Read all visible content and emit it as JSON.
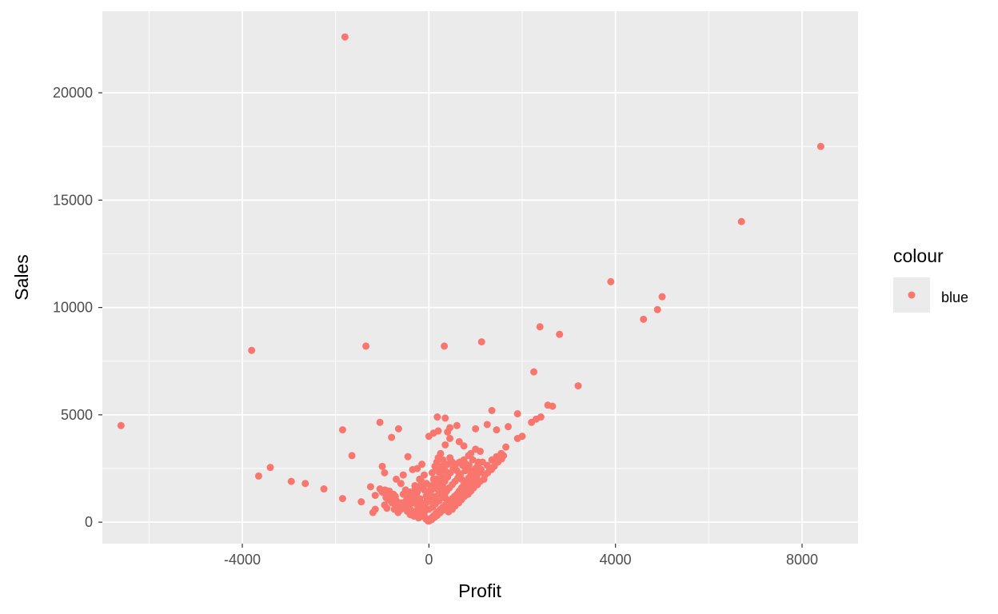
{
  "chart_data": {
    "type": "scatter",
    "title": "",
    "xlabel": "Profit",
    "ylabel": "Sales",
    "xlim": [
      -7000,
      9200
    ],
    "ylim": [
      -1000,
      23800
    ],
    "x_ticks": [
      -4000,
      0,
      4000,
      8000
    ],
    "x_tick_labels": [
      "-4000",
      "0",
      "4000",
      "8000"
    ],
    "y_ticks": [
      0,
      5000,
      10000,
      15000,
      20000
    ],
    "y_tick_labels": [
      "0",
      "5000",
      "10000",
      "15000",
      "20000"
    ],
    "x_minor": [
      -6000,
      -2000,
      2000,
      6000
    ],
    "y_minor": [
      2500,
      7500,
      12500,
      17500
    ],
    "grid": true,
    "legend": {
      "title": "colour",
      "position": "right",
      "entries": [
        {
          "label": "blue",
          "color": "#F8766D"
        }
      ]
    },
    "colors": {
      "point": "#F8766D",
      "panel": "#EBEBEB",
      "grid": "#FFFFFF"
    },
    "series": [
      {
        "name": "blue",
        "points": [
          [
            -6600,
            4500
          ],
          [
            -3800,
            8000
          ],
          [
            -1800,
            22600
          ],
          [
            8400,
            17500
          ],
          [
            6700,
            14000
          ],
          [
            3900,
            11200
          ],
          [
            5000,
            10500
          ],
          [
            4900,
            9900
          ],
          [
            4600,
            9450
          ],
          [
            -1350,
            8200
          ],
          [
            330,
            8200
          ],
          [
            1130,
            8400
          ],
          [
            2380,
            9100
          ],
          [
            2800,
            8750
          ],
          [
            2250,
            7000
          ],
          [
            3200,
            6350
          ],
          [
            2550,
            5450
          ],
          [
            2650,
            5400
          ],
          [
            2400,
            4900
          ],
          [
            2300,
            4800
          ],
          [
            2200,
            4650
          ],
          [
            1900,
            5050
          ],
          [
            1350,
            5200
          ],
          [
            1250,
            4550
          ],
          [
            1000,
            4350
          ],
          [
            1450,
            4300
          ],
          [
            1700,
            4450
          ],
          [
            1900,
            3900
          ],
          [
            1650,
            3500
          ],
          [
            2000,
            4000
          ],
          [
            -1850,
            4300
          ],
          [
            -1050,
            4650
          ],
          [
            -650,
            4350
          ],
          [
            -800,
            3950
          ],
          [
            -1650,
            3100
          ],
          [
            -450,
            3050
          ],
          [
            -3650,
            2150
          ],
          [
            -3400,
            2550
          ],
          [
            -2950,
            1900
          ],
          [
            -2650,
            1800
          ],
          [
            -2250,
            1550
          ],
          [
            -1850,
            1100
          ],
          [
            -1450,
            950
          ],
          [
            -1250,
            1650
          ],
          [
            -1050,
            1550
          ],
          [
            -1000,
            2600
          ],
          [
            -950,
            2300
          ],
          [
            -850,
            1450
          ],
          [
            -1150,
            1250
          ],
          [
            -1150,
            600
          ],
          [
            -1200,
            450
          ],
          [
            -950,
            800
          ],
          [
            -900,
            650
          ],
          [
            -800,
            1100
          ],
          [
            -700,
            2000
          ],
          [
            -600,
            1800
          ],
          [
            -550,
            2200
          ],
          [
            -350,
            2450
          ],
          [
            -250,
            2500
          ],
          [
            -150,
            2700
          ],
          [
            0,
            4000
          ],
          [
            100,
            4150
          ],
          [
            200,
            4250
          ],
          [
            400,
            4200
          ],
          [
            180,
            4900
          ],
          [
            350,
            4850
          ],
          [
            450,
            4400
          ],
          [
            600,
            4500
          ],
          [
            450,
            3900
          ],
          [
            350,
            3600
          ],
          [
            650,
            3750
          ],
          [
            750,
            3550
          ],
          [
            850,
            3100
          ],
          [
            900,
            3200
          ],
          [
            1000,
            3400
          ],
          [
            1100,
            3300
          ],
          [
            1150,
            2800
          ],
          [
            1250,
            2650
          ],
          [
            1350,
            2900
          ],
          [
            1450,
            3050
          ],
          [
            1550,
            3200
          ],
          [
            1300,
            2500
          ],
          [
            -700,
            1000
          ],
          [
            -600,
            900
          ],
          [
            -500,
            700
          ],
          [
            -400,
            600
          ],
          [
            -300,
            500
          ],
          [
            -200,
            400
          ],
          [
            -100,
            300
          ],
          [
            -50,
            150
          ],
          [
            -500,
            1500
          ],
          [
            -400,
            1400
          ],
          [
            -300,
            1200
          ],
          [
            -200,
            1100
          ],
          [
            -100,
            900
          ],
          [
            -350,
            900
          ],
          [
            -250,
            800
          ],
          [
            -150,
            650
          ],
          [
            -450,
            1100
          ],
          [
            -550,
            1300
          ],
          [
            0,
            100
          ],
          [
            50,
            200
          ],
          [
            100,
            300
          ],
          [
            150,
            400
          ],
          [
            200,
            500
          ],
          [
            250,
            600
          ],
          [
            300,
            700
          ],
          [
            350,
            800
          ],
          [
            400,
            900
          ],
          [
            450,
            1000
          ],
          [
            500,
            1100
          ],
          [
            550,
            1200
          ],
          [
            600,
            1300
          ],
          [
            650,
            1450
          ],
          [
            700,
            1600
          ],
          [
            750,
            1750
          ],
          [
            800,
            1900
          ],
          [
            850,
            2050
          ],
          [
            900,
            2200
          ],
          [
            950,
            2350
          ],
          [
            1000,
            2500
          ],
          [
            1050,
            2650
          ],
          [
            100,
            900
          ],
          [
            150,
            1200
          ],
          [
            200,
            1500
          ],
          [
            250,
            1800
          ],
          [
            300,
            2100
          ],
          [
            350,
            2400
          ],
          [
            400,
            2700
          ],
          [
            450,
            3000
          ],
          [
            500,
            2800
          ],
          [
            550,
            2600
          ],
          [
            600,
            2400
          ],
          [
            650,
            2200
          ],
          [
            700,
            2000
          ],
          [
            750,
            2900
          ],
          [
            800,
            2700
          ],
          [
            850,
            2500
          ],
          [
            0,
            600
          ],
          [
            0,
            1000
          ],
          [
            50,
            1500
          ],
          [
            100,
            2000
          ],
          [
            150,
            2500
          ],
          [
            200,
            3000
          ],
          [
            250,
            3200
          ],
          [
            300,
            2900
          ],
          [
            -50,
            1800
          ],
          [
            -100,
            2200
          ],
          [
            -150,
            1600
          ],
          [
            -200,
            2000
          ],
          [
            -250,
            1400
          ],
          [
            -300,
            1700
          ],
          [
            0,
            50
          ],
          [
            20,
            80
          ],
          [
            -20,
            60
          ],
          [
            60,
            120
          ],
          [
            -60,
            140
          ],
          [
            120,
            220
          ],
          [
            -120,
            260
          ],
          [
            180,
            320
          ],
          [
            -180,
            380
          ],
          [
            240,
            440
          ],
          [
            -240,
            520
          ],
          [
            300,
            560
          ],
          [
            360,
            640
          ],
          [
            420,
            720
          ],
          [
            480,
            820
          ],
          [
            540,
            920
          ],
          [
            580,
            1020
          ],
          [
            620,
            1150
          ],
          [
            680,
            1250
          ],
          [
            720,
            1350
          ],
          [
            780,
            1450
          ],
          [
            820,
            1550
          ],
          [
            880,
            1650
          ],
          [
            920,
            1800
          ],
          [
            980,
            1950
          ],
          [
            1020,
            2100
          ],
          [
            1080,
            2300
          ],
          [
            1120,
            2450
          ],
          [
            80,
            700
          ],
          [
            140,
            850
          ],
          [
            220,
            1000
          ],
          [
            280,
            1150
          ],
          [
            340,
            1300
          ],
          [
            380,
            1450
          ],
          [
            440,
            1600
          ],
          [
            500,
            1750
          ],
          [
            560,
            1900
          ],
          [
            620,
            2050
          ],
          [
            680,
            2250
          ],
          [
            -80,
            700
          ],
          [
            -140,
            850
          ],
          [
            -220,
            1000
          ],
          [
            -280,
            1150
          ],
          [
            -340,
            1300
          ],
          [
            -380,
            1000
          ],
          [
            -440,
            800
          ],
          [
            -60,
            1200
          ],
          [
            -20,
            1400
          ],
          [
            30,
            1700
          ],
          [
            70,
            2300
          ],
          [
            130,
            2600
          ],
          [
            170,
            2800
          ],
          [
            230,
            2400
          ],
          [
            270,
            2000
          ],
          [
            320,
            1600
          ],
          [
            360,
            1100
          ],
          [
            270,
            1300
          ],
          [
            190,
            1700
          ],
          [
            110,
            1100
          ],
          [
            40,
            1250
          ],
          [
            -30,
            950
          ],
          [
            -90,
            500
          ],
          [
            -160,
            300
          ],
          [
            -220,
            200
          ],
          [
            -280,
            350
          ],
          [
            -320,
            280
          ],
          [
            -400,
            350
          ],
          [
            -460,
            500
          ],
          [
            -520,
            650
          ],
          [
            -580,
            800
          ],
          [
            -640,
            700
          ],
          [
            -680,
            850
          ],
          [
            -720,
            1200
          ],
          [
            -760,
            1300
          ],
          [
            -820,
            1250
          ],
          [
            -880,
            1350
          ],
          [
            -940,
            1500
          ],
          [
            -1000,
            1400
          ],
          [
            500,
            600
          ],
          [
            420,
            480
          ],
          [
            560,
            750
          ],
          [
            640,
            900
          ],
          [
            700,
            1050
          ],
          [
            760,
            1200
          ],
          [
            840,
            1300
          ],
          [
            900,
            1450
          ],
          [
            960,
            1600
          ],
          [
            1040,
            1750
          ],
          [
            1100,
            1900
          ],
          [
            1180,
            2000
          ],
          [
            1200,
            2200
          ],
          [
            1260,
            2300
          ],
          [
            1340,
            2450
          ],
          [
            1400,
            2600
          ],
          [
            1480,
            2800
          ],
          [
            1560,
            2950
          ],
          [
            1600,
            3100
          ],
          [
            1060,
            2800
          ],
          [
            940,
            2900
          ],
          [
            860,
            2650
          ],
          [
            780,
            2400
          ],
          [
            720,
            2650
          ],
          [
            660,
            2800
          ],
          [
            580,
            2700
          ],
          [
            520,
            2500
          ],
          [
            460,
            2300
          ],
          [
            400,
            2100
          ],
          [
            340,
            1900
          ],
          [
            280,
            2600
          ],
          [
            220,
            2300
          ],
          [
            160,
            2000
          ],
          [
            100,
            1700
          ],
          [
            60,
            1500
          ],
          [
            -40,
            1300
          ],
          [
            -100,
            1500
          ],
          [
            -160,
            1900
          ],
          [
            -230,
            1650
          ],
          [
            -300,
            1500
          ],
          [
            -370,
            1300
          ],
          [
            -430,
            1200
          ],
          [
            -490,
            1000
          ],
          [
            -540,
            850
          ],
          [
            -600,
            600
          ],
          [
            -660,
            450
          ],
          [
            -740,
            600
          ],
          [
            -790,
            900
          ],
          [
            -870,
            1050
          ],
          [
            -920,
            1150
          ]
        ]
      }
    ]
  }
}
